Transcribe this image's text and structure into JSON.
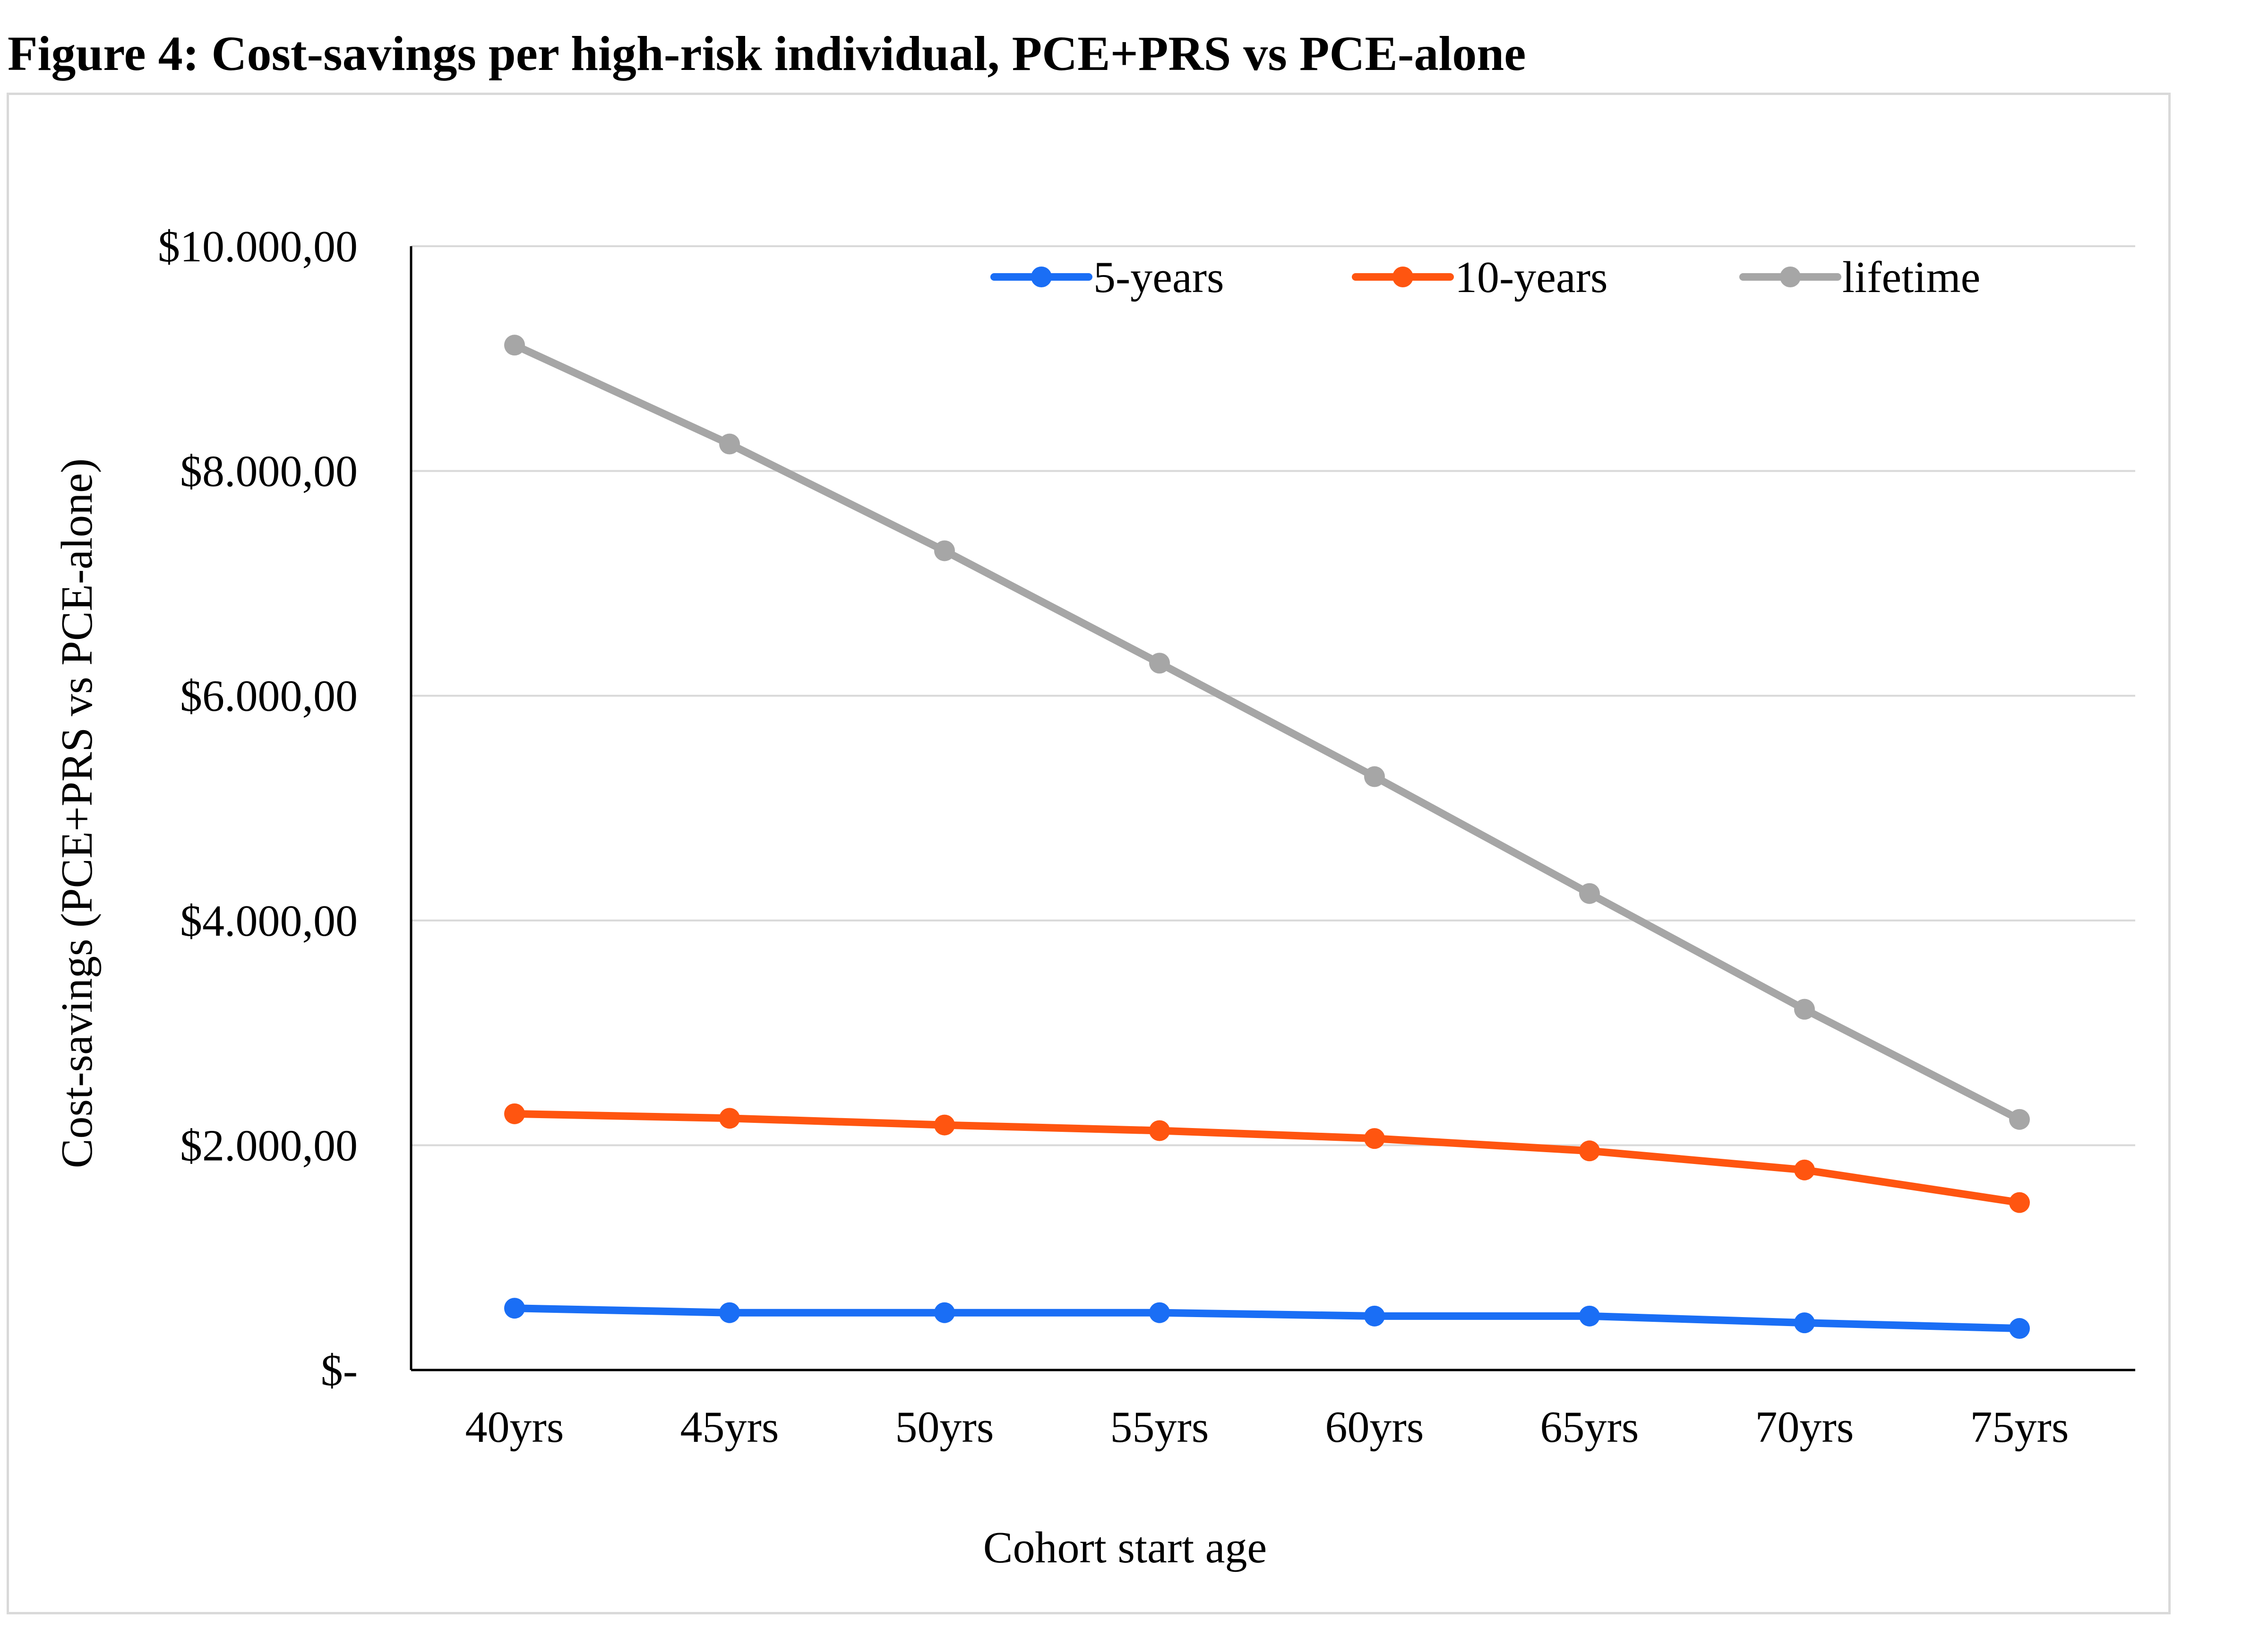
{
  "figure": {
    "title": "Figure 4: Cost-savings per high-risk individual, PCE+PRS vs PCE-alone"
  },
  "chart_data": {
    "type": "line",
    "title": "",
    "xlabel": "Cohort start age",
    "ylabel": "Cost-savings (PCE+PRS  vs PCE-alone)",
    "categories": [
      "40yrs",
      "45yrs",
      "50yrs",
      "55yrs",
      "60yrs",
      "65yrs",
      "70yrs",
      "75yrs"
    ],
    "ylim": [
      0,
      10000
    ],
    "yticks": [
      0,
      2000,
      4000,
      6000,
      8000,
      10000
    ],
    "ytick_labels": [
      "$-",
      "$2.000,00",
      "$4.000,00",
      "$6.000,00",
      "$8.000,00",
      "$10.000,00"
    ],
    "grid": true,
    "legend_position": "top-right",
    "series": [
      {
        "name": "5-years",
        "color": "#1a6ef5",
        "values": [
          550,
          510,
          510,
          510,
          480,
          480,
          420,
          370
        ]
      },
      {
        "name": "10-years",
        "color": "#ff5510",
        "values": [
          2280,
          2240,
          2180,
          2130,
          2060,
          1950,
          1780,
          1490
        ]
      },
      {
        "name": "lifetime",
        "color": "#a6a6a6",
        "values": [
          9120,
          8240,
          7290,
          6290,
          5280,
          4240,
          3210,
          2230
        ]
      }
    ]
  }
}
